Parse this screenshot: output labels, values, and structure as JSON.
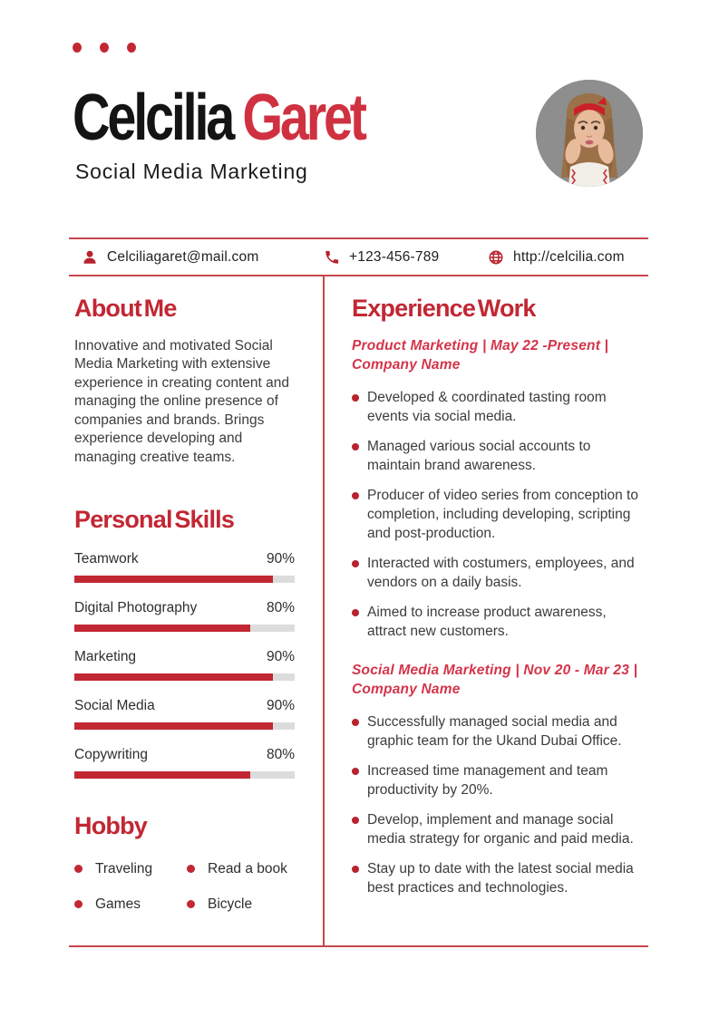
{
  "theme": {
    "accent": "#c22733",
    "name_accent": "#cf3140",
    "line_color": "#c8474e",
    "job_title_color": "#d4344a",
    "body_text": "#3c3c3c"
  },
  "header": {
    "first_name": "Celcilia",
    "last_name": "Garet",
    "subtitle": "Social Media Marketing"
  },
  "contact": {
    "email": "Celciliagaret@mail.com",
    "phone": "+123-456-789",
    "website": "http://celcilia.com"
  },
  "about": {
    "heading": "About Me",
    "text": "Innovative and motivated Social Media Marketing with extensive experience in creating content and managing the online presence of companies and brands. Brings experience developing and managing creative teams."
  },
  "skills": {
    "heading": "Personal Skills",
    "items": [
      {
        "label": "Teamwork",
        "percent": "90%",
        "value": 90
      },
      {
        "label": "Digital Photography",
        "percent": "80%",
        "value": 80
      },
      {
        "label": "Marketing",
        "percent": "90%",
        "value": 90
      },
      {
        "label": "Social Media",
        "percent": "90%",
        "value": 90
      },
      {
        "label": "Copywriting",
        "percent": "80%",
        "value": 80
      }
    ]
  },
  "hobby": {
    "heading": "Hobby",
    "items": [
      "Traveling",
      "Read a book",
      "Games",
      "Bicycle"
    ]
  },
  "experience": {
    "heading": "Experience Work",
    "jobs": [
      {
        "title": "Product Marketing | May 22 -Present | Company Name",
        "bullets": [
          "Developed & coordinated tasting room events via social media.",
          "Managed various social accounts to maintain brand awareness.",
          "Producer of video series from conception to completion, including developing, scripting and post-production.",
          "Interacted with costumers, employees, and vendors on a daily basis.",
          "Aimed to increase product awareness, attract new customers."
        ]
      },
      {
        "title": "Social Media Marketing | Nov 20 - Mar 23 | Company Name",
        "bullets": [
          "Successfully managed social media and graphic team for the Ukand Dubai Office.",
          "Increased time management and team productivity by 20%.",
          "Develop, implement and manage social media strategy for organic and paid media.",
          "Stay up to date with the latest social media best practices and technologies."
        ]
      }
    ]
  }
}
